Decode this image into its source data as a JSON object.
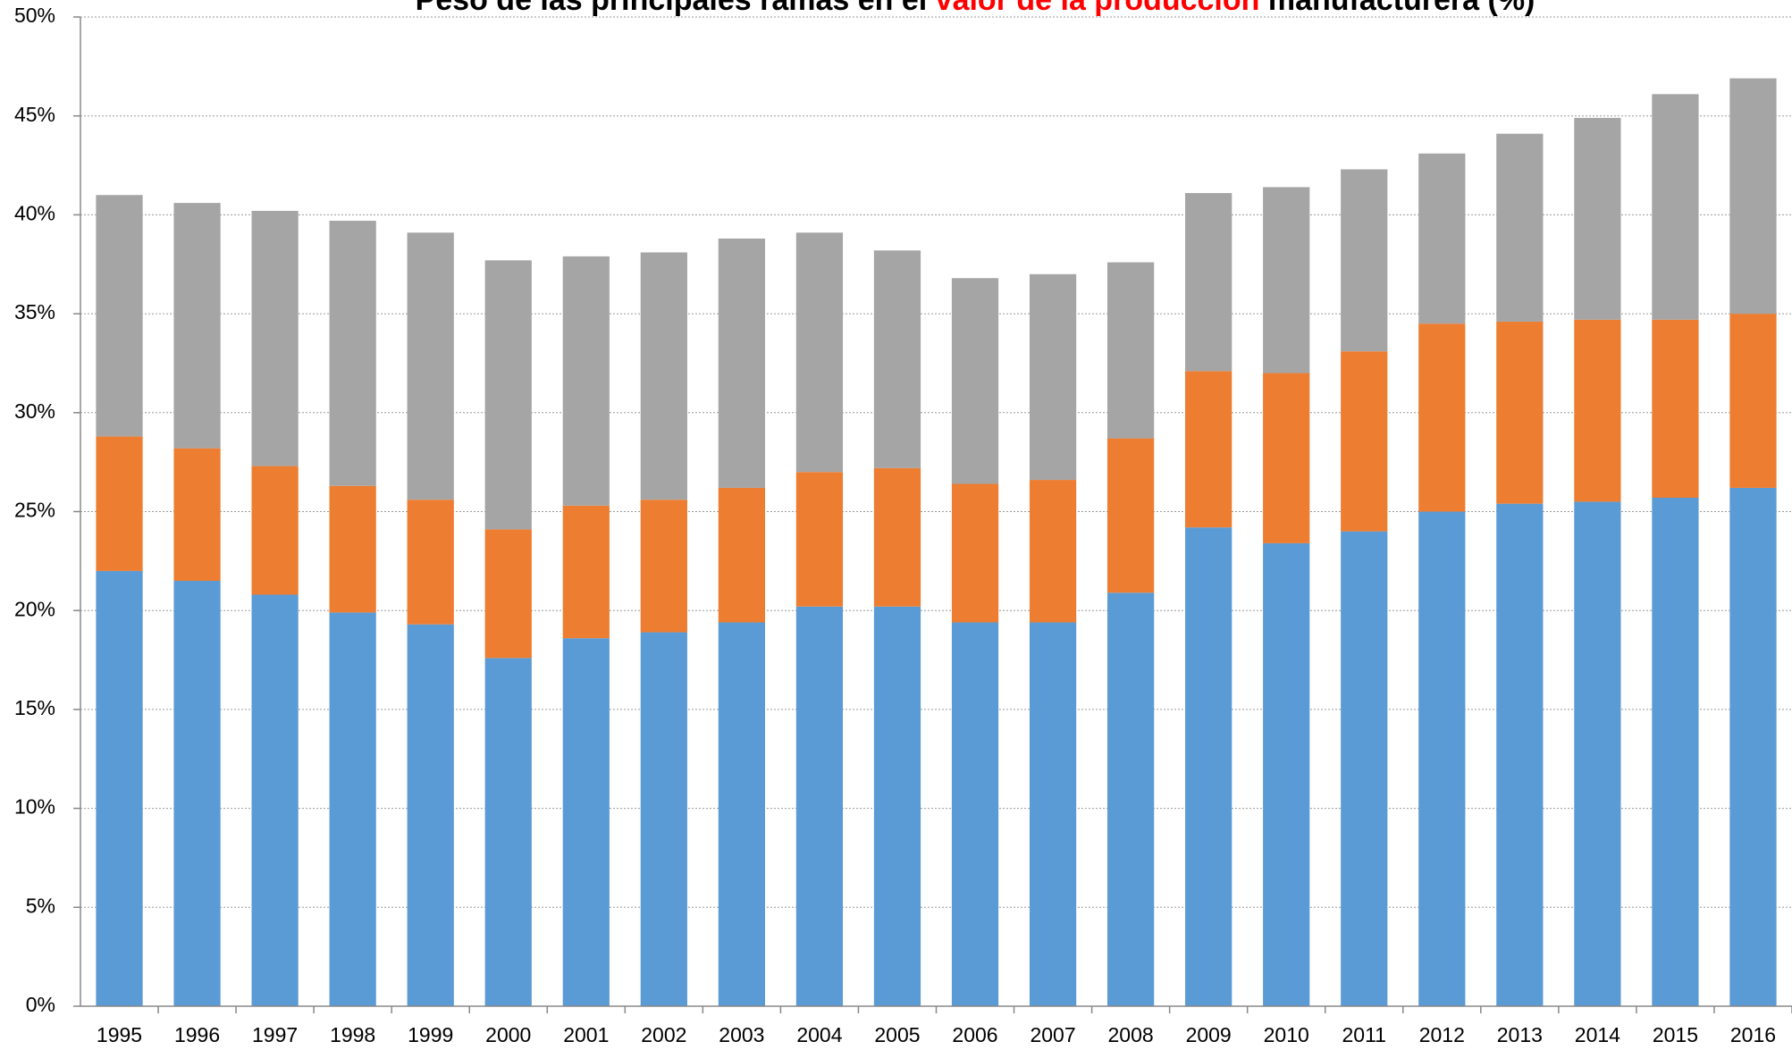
{
  "chart_data": {
    "type": "stacked_bar",
    "title": [
      "Peso de las principales ramas en el ",
      "valor de la producción",
      " manufacturera (%)"
    ],
    "categories": [
      "1995",
      "1996",
      "1997",
      "1998",
      "1999",
      "2000",
      "2001",
      "2002",
      "2003",
      "2004",
      "2005",
      "2006",
      "2007",
      "2008",
      "2009",
      "2010",
      "2011",
      "2012",
      "2013",
      "2014",
      "2015",
      "2016"
    ],
    "series": [
      {
        "color": "#5b9bd5",
        "values": [
          22.0,
          21.5,
          20.8,
          19.9,
          19.3,
          17.6,
          18.6,
          18.9,
          19.4,
          20.2,
          20.2,
          19.4,
          19.4,
          20.9,
          24.2,
          23.4,
          24.0,
          25.0,
          25.4,
          25.5,
          25.7,
          26.2
        ]
      },
      {
        "color": "#ed7d31",
        "values": [
          6.8,
          6.7,
          6.5,
          6.4,
          6.3,
          6.5,
          6.7,
          6.7,
          6.8,
          6.8,
          7.0,
          7.0,
          7.2,
          7.8,
          7.9,
          8.6,
          9.1,
          9.5,
          9.2,
          9.2,
          9.0,
          8.8
        ]
      },
      {
        "color": "#a5a5a5",
        "values": [
          12.2,
          12.4,
          12.9,
          13.4,
          13.5,
          13.6,
          12.6,
          12.5,
          12.6,
          12.1,
          11.0,
          10.4,
          10.4,
          8.9,
          9.0,
          9.4,
          9.2,
          8.6,
          9.5,
          10.2,
          11.4,
          11.9
        ]
      }
    ],
    "ylim": [
      0,
      50
    ],
    "yticks": [
      {
        "value": 0,
        "label": "0%"
      },
      {
        "value": 5,
        "label": "5%"
      },
      {
        "value": 10,
        "label": "10%"
      },
      {
        "value": 15,
        "label": "15%"
      },
      {
        "value": 20,
        "label": "20%"
      },
      {
        "value": 25,
        "label": "25%"
      },
      {
        "value": 30,
        "label": "30%"
      },
      {
        "value": 35,
        "label": "35%"
      },
      {
        "value": 40,
        "label": "40%"
      },
      {
        "value": 45,
        "label": "45%"
      },
      {
        "value": 50,
        "label": "50%"
      }
    ],
    "grid": true
  }
}
